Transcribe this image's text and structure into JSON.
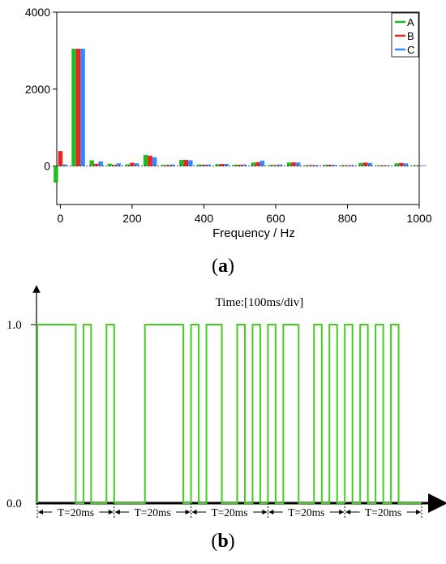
{
  "chart_data": [
    {
      "type": "bar",
      "panel": "(a)",
      "xlabel": "Frequency / Hz",
      "ylabel": "",
      "xlim": [
        -10,
        1000
      ],
      "ylim": [
        -1000,
        4000
      ],
      "xticks": [
        0,
        200,
        400,
        600,
        800,
        1000
      ],
      "yticks": [
        0,
        2000,
        4000
      ],
      "legend_position": "top-right",
      "x": [
        0,
        50,
        100,
        150,
        200,
        250,
        300,
        350,
        400,
        450,
        500,
        550,
        600,
        650,
        700,
        750,
        800,
        850,
        900,
        950,
        1000
      ],
      "series": [
        {
          "name": "A",
          "color": "#22bb22",
          "values": [
            -430,
            3050,
            150,
            60,
            45,
            290,
            30,
            160,
            40,
            50,
            35,
            90,
            30,
            90,
            25,
            30,
            25,
            80,
            20,
            70,
            20
          ]
        },
        {
          "name": "B",
          "color": "#ee2222",
          "values": [
            390,
            3050,
            60,
            30,
            85,
            270,
            30,
            160,
            35,
            55,
            35,
            100,
            25,
            95,
            25,
            35,
            20,
            90,
            20,
            80,
            20
          ]
        },
        {
          "name": "C",
          "color": "#3388ff",
          "values": [
            40,
            3050,
            120,
            70,
            70,
            230,
            40,
            150,
            40,
            55,
            40,
            140,
            40,
            90,
            25,
            30,
            25,
            80,
            20,
            70,
            20
          ]
        }
      ]
    },
    {
      "type": "line",
      "panel": "(b)",
      "title": "Time:[100ms/div]",
      "yticks": [
        "0.0",
        "1.0"
      ],
      "color": "#44cc22",
      "period_label": "T=20ms",
      "periods": 5,
      "high_intervals_ms": [
        [
          0,
          10
        ],
        [
          12,
          14
        ],
        [
          18,
          20
        ],
        [
          28,
          38
        ],
        [
          40,
          42
        ],
        [
          44,
          48
        ],
        [
          52,
          54
        ],
        [
          56,
          58
        ],
        [
          60,
          62
        ],
        [
          64,
          68
        ],
        [
          72,
          74
        ],
        [
          76,
          78
        ],
        [
          80,
          82
        ],
        [
          84,
          86
        ],
        [
          88,
          90
        ],
        [
          92,
          94
        ]
      ]
    }
  ],
  "captions": {
    "a": {
      "open": "(",
      "letter": "a",
      "close": ")"
    },
    "b": {
      "open": "(",
      "letter": "b",
      "close": ")"
    }
  }
}
